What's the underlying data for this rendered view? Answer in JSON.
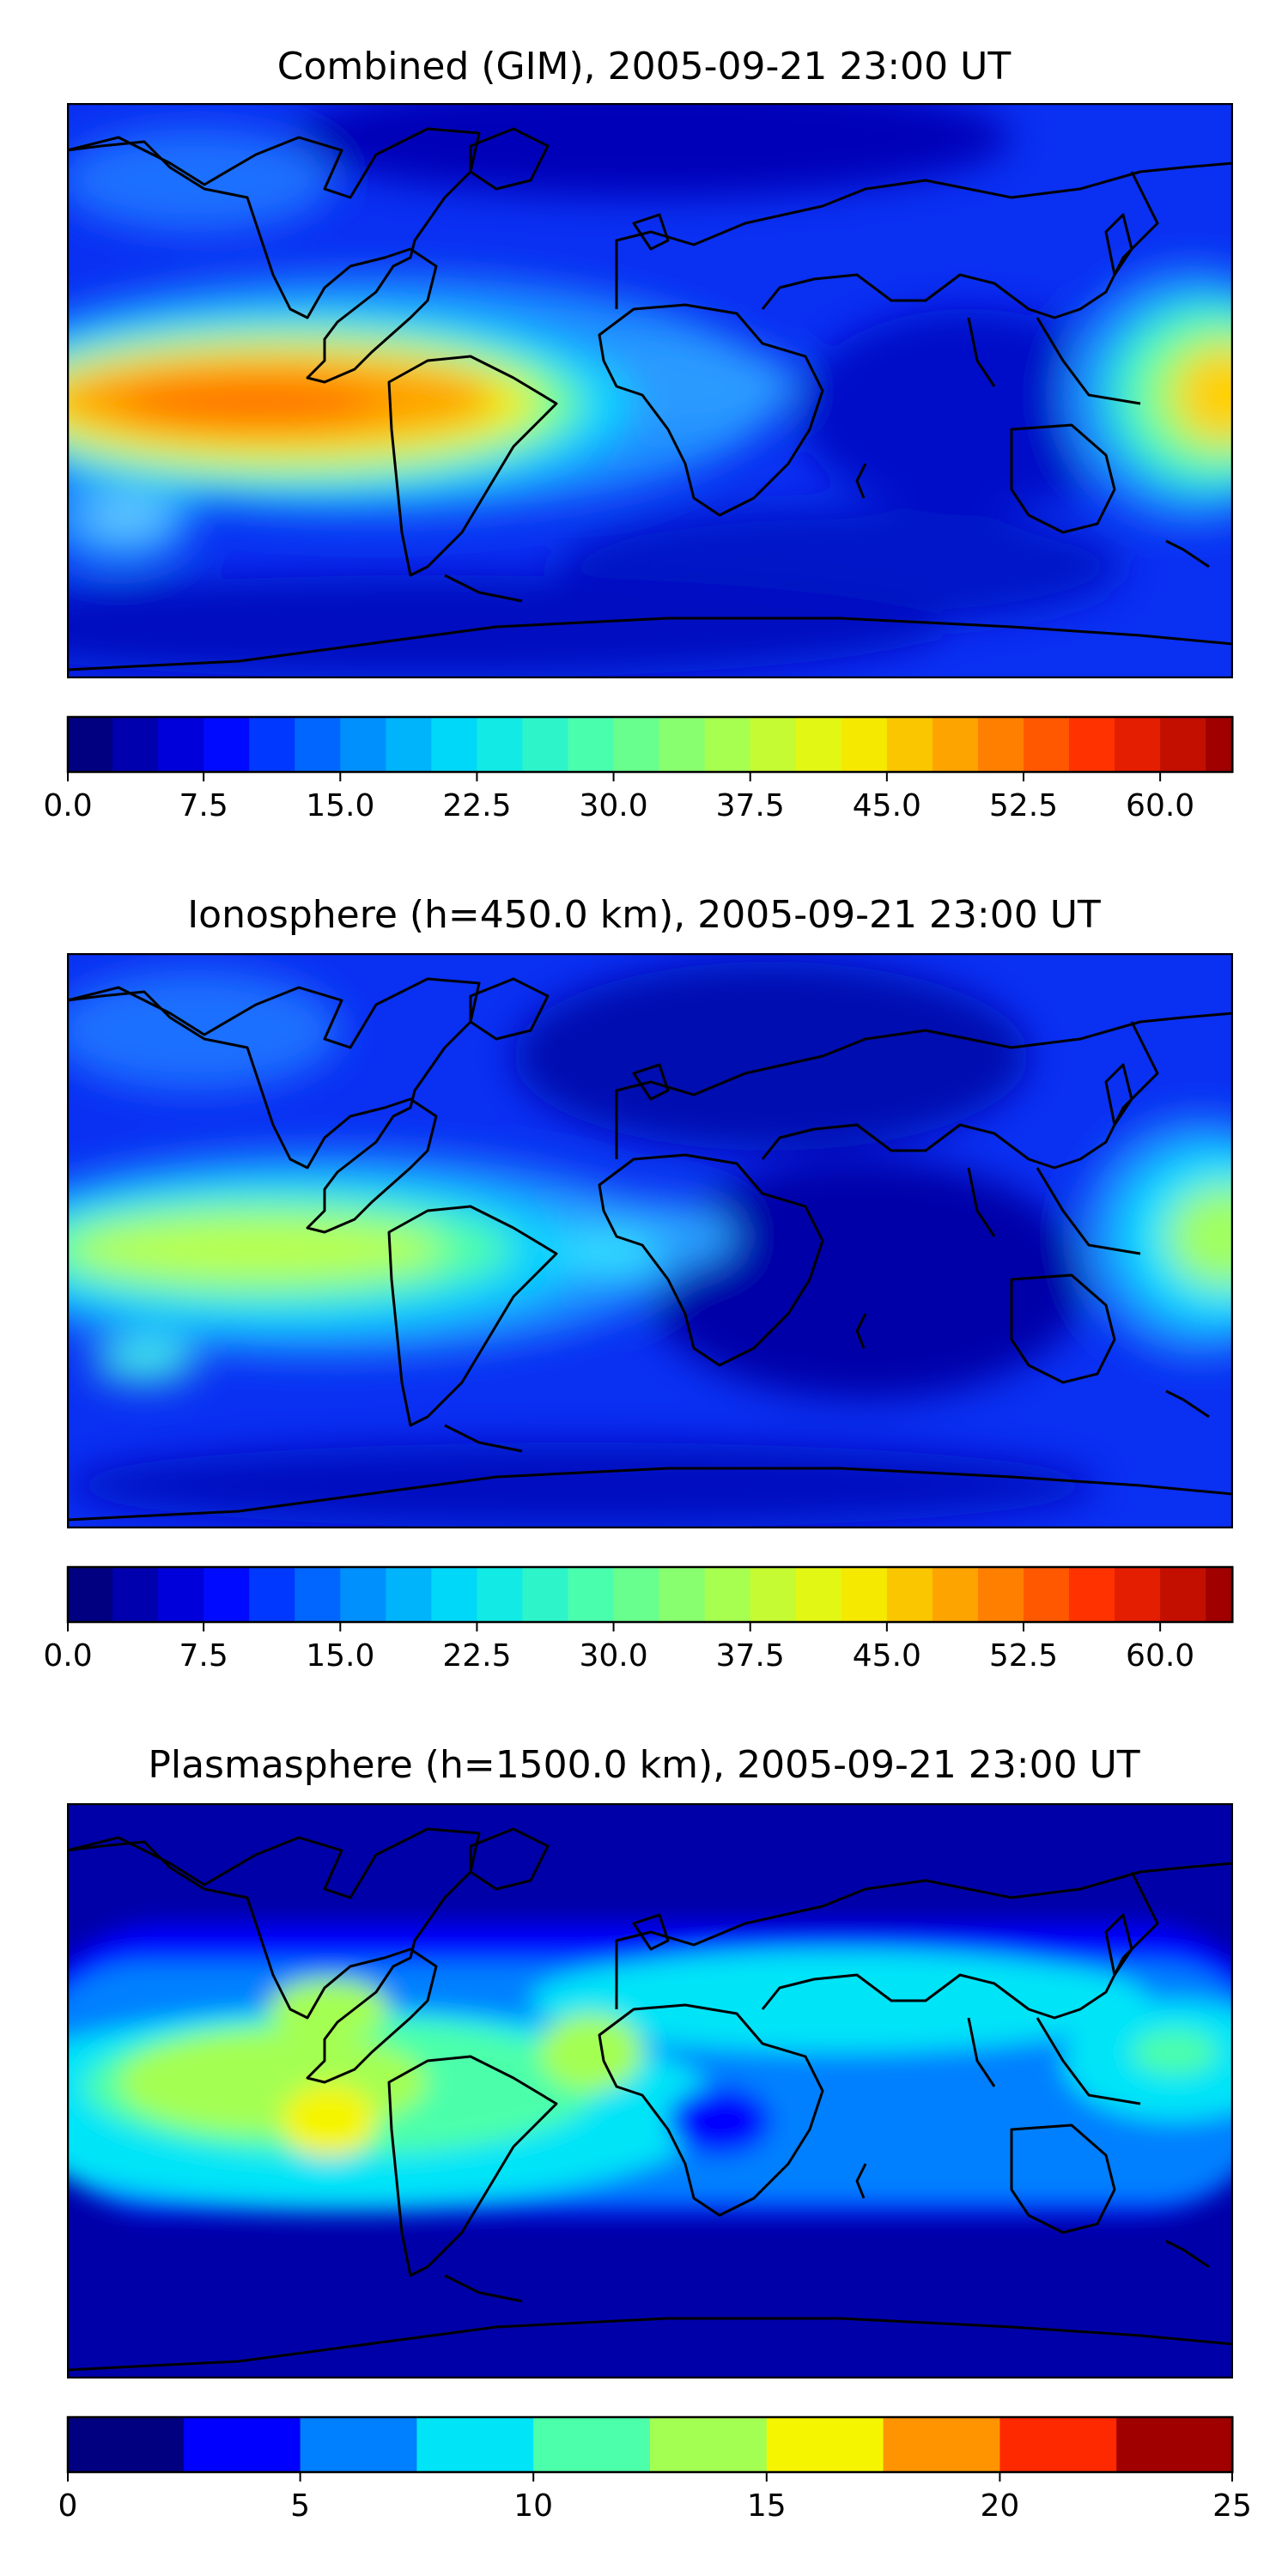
{
  "panels": [
    {
      "title": "Combined (GIM), 2005-09-21 23:00 UT",
      "colorbar": {
        "min": 0,
        "max": 64,
        "levels": [
          0,
          2.5,
          5,
          7.5,
          10,
          12.5,
          15,
          17.5,
          20,
          22.5,
          25,
          27.5,
          30,
          32.5,
          35,
          37.5,
          40,
          42.5,
          45,
          47.5,
          50,
          52.5,
          55,
          57.5,
          60,
          62.5,
          64
        ],
        "ticks": [
          0,
          7.5,
          15,
          22.5,
          30,
          37.5,
          45,
          52.5,
          60
        ],
        "tick_labels": [
          "0.0",
          "7.5",
          "15.0",
          "22.5",
          "30.0",
          "37.5",
          "45.0",
          "52.5",
          "60.0"
        ]
      }
    },
    {
      "title": "Ionosphere  (h=450.0 km), 2005-09-21 23:00 UT",
      "colorbar": {
        "min": 0,
        "max": 64,
        "levels": [
          0,
          2.5,
          5,
          7.5,
          10,
          12.5,
          15,
          17.5,
          20,
          22.5,
          25,
          27.5,
          30,
          32.5,
          35,
          37.5,
          40,
          42.5,
          45,
          47.5,
          50,
          52.5,
          55,
          57.5,
          60,
          62.5,
          64
        ],
        "ticks": [
          0,
          7.5,
          15,
          22.5,
          30,
          37.5,
          45,
          52.5,
          60
        ],
        "tick_labels": [
          "0.0",
          "7.5",
          "15.0",
          "22.5",
          "30.0",
          "37.5",
          "45.0",
          "52.5",
          "60.0"
        ]
      }
    },
    {
      "title": "Plasmasphere (h=1500.0 km), 2005-09-21 23:00 UT",
      "colorbar": {
        "min": 0,
        "max": 25,
        "levels": [
          0,
          2.5,
          5,
          7.5,
          10,
          12.5,
          15,
          17.5,
          20,
          22.5,
          25
        ],
        "ticks": [
          0,
          5,
          10,
          15,
          20,
          25
        ],
        "tick_labels": [
          "0",
          "5",
          "10",
          "15",
          "20",
          "25"
        ]
      }
    }
  ],
  "colors": {
    "jet_stops": [
      "#000080",
      "#0000ff",
      "#0080ff",
      "#00e4f8",
      "#4cffaa",
      "#a4ff53",
      "#f5f500",
      "#ff9400",
      "#ff2900",
      "#a00000"
    ],
    "coastline": "#000000",
    "frame": "#000000"
  }
}
